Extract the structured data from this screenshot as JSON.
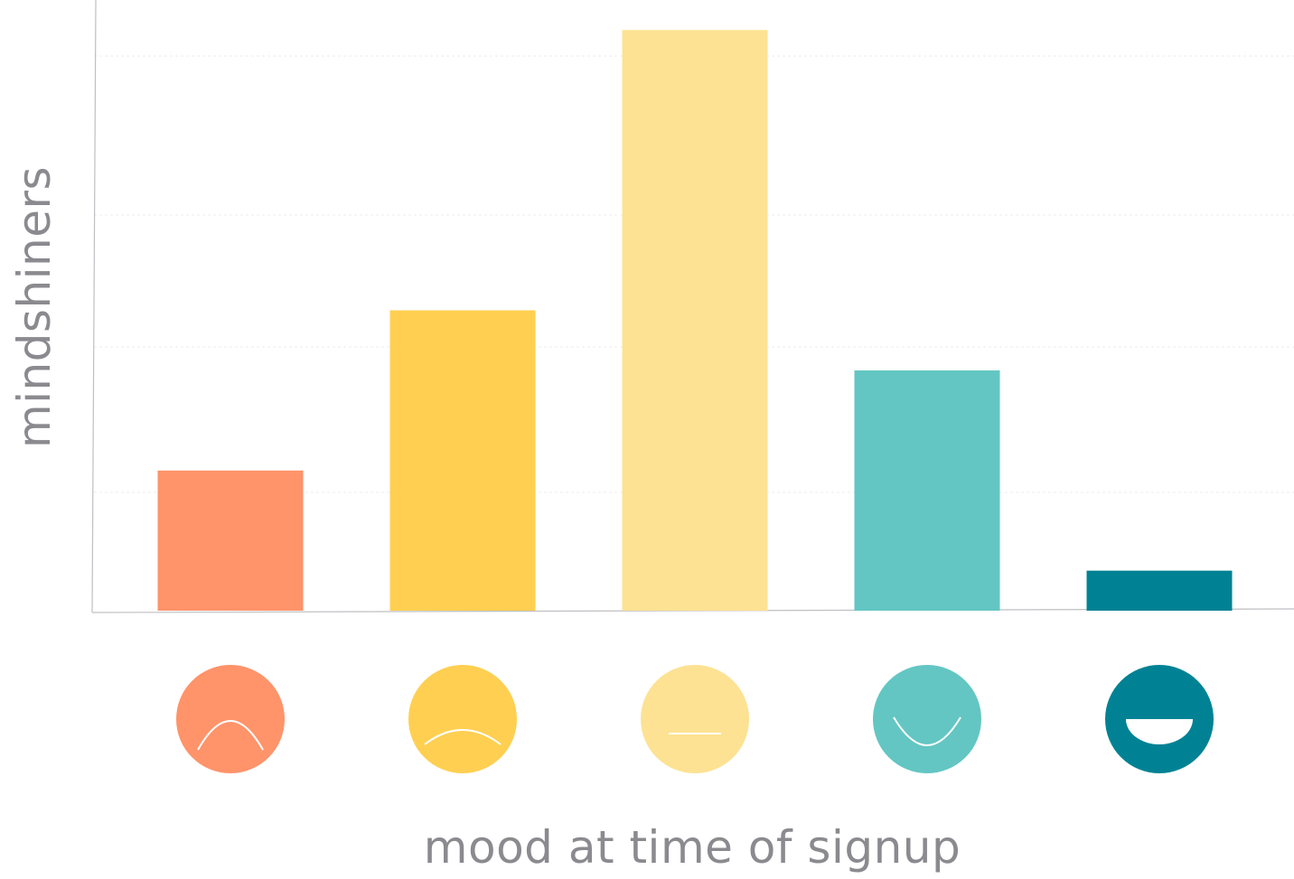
{
  "chart_data": {
    "type": "bar",
    "title": "",
    "xlabel": "mood at time of signup",
    "ylabel": "mindshiners",
    "categories": [
      "very sad",
      "sad",
      "neutral",
      "happy",
      "very happy"
    ],
    "values": [
      14,
      30,
      58,
      24,
      4
    ],
    "ylim": [
      0,
      61
    ],
    "grid": true,
    "legend": "none",
    "colors": [
      "#FF936A",
      "#FECF51",
      "#FDE293",
      "#63C6C3",
      "#018294"
    ],
    "icons": [
      "very-sad-face-icon",
      "sad-face-icon",
      "neutral-face-icon",
      "happy-face-icon",
      "very-happy-face-icon"
    ]
  }
}
